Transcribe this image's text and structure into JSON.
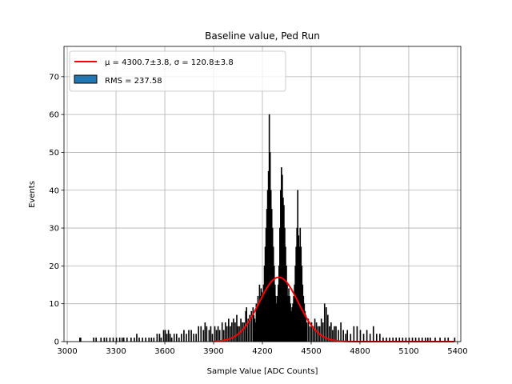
{
  "chart_data": {
    "type": "bar",
    "title": "Baseline value, Ped Run",
    "xlabel": "Sample Value [ADC Counts]",
    "ylabel": "Events",
    "xlim": [
      2980,
      5420
    ],
    "ylim": [
      0,
      78
    ],
    "xticks": [
      3000,
      3300,
      3600,
      3900,
      4200,
      4500,
      4800,
      5100,
      5400
    ],
    "yticks": [
      0,
      10,
      20,
      30,
      40,
      50,
      60,
      70
    ],
    "grid": true,
    "legend_position": "top-left",
    "legend": [
      {
        "kind": "line",
        "label": "μ = 4300.7±3.8, σ = 120.8±3.8",
        "color": "#ff0000"
      },
      {
        "kind": "patch",
        "label": "RMS = 237.58",
        "color": "#1f77b4"
      }
    ],
    "histogram": {
      "name": "RMS = 237.58",
      "bin_width": 5,
      "bins": [
        [
          3075,
          1
        ],
        [
          3080,
          1
        ],
        [
          3160,
          1
        ],
        [
          3175,
          1
        ],
        [
          3205,
          1
        ],
        [
          3225,
          1
        ],
        [
          3240,
          1
        ],
        [
          3260,
          1
        ],
        [
          3280,
          1
        ],
        [
          3300,
          1
        ],
        [
          3320,
          1
        ],
        [
          3335,
          1
        ],
        [
          3345,
          1
        ],
        [
          3365,
          1
        ],
        [
          3390,
          1
        ],
        [
          3410,
          1
        ],
        [
          3425,
          2
        ],
        [
          3440,
          1
        ],
        [
          3460,
          1
        ],
        [
          3480,
          1
        ],
        [
          3500,
          1
        ],
        [
          3515,
          1
        ],
        [
          3530,
          1
        ],
        [
          3550,
          2
        ],
        [
          3565,
          2
        ],
        [
          3575,
          1
        ],
        [
          3590,
          3
        ],
        [
          3600,
          3
        ],
        [
          3610,
          2
        ],
        [
          3620,
          3
        ],
        [
          3630,
          2
        ],
        [
          3640,
          1
        ],
        [
          3655,
          2
        ],
        [
          3670,
          2
        ],
        [
          3685,
          1
        ],
        [
          3700,
          2
        ],
        [
          3715,
          3
        ],
        [
          3730,
          2
        ],
        [
          3745,
          3
        ],
        [
          3760,
          3
        ],
        [
          3775,
          2
        ],
        [
          3790,
          2
        ],
        [
          3805,
          4
        ],
        [
          3820,
          4
        ],
        [
          3835,
          3
        ],
        [
          3845,
          5
        ],
        [
          3855,
          4
        ],
        [
          3870,
          3
        ],
        [
          3880,
          4
        ],
        [
          3890,
          2
        ],
        [
          3905,
          4
        ],
        [
          3915,
          3
        ],
        [
          3925,
          4
        ],
        [
          3935,
          3
        ],
        [
          3950,
          5
        ],
        [
          3960,
          3
        ],
        [
          3970,
          5
        ],
        [
          3980,
          4
        ],
        [
          3990,
          6
        ],
        [
          4000,
          4
        ],
        [
          4010,
          5
        ],
        [
          4020,
          6
        ],
        [
          4030,
          5
        ],
        [
          4040,
          7
        ],
        [
          4045,
          4
        ],
        [
          4055,
          4
        ],
        [
          4065,
          6
        ],
        [
          4075,
          5
        ],
        [
          4085,
          5
        ],
        [
          4095,
          8
        ],
        [
          4100,
          9
        ],
        [
          4110,
          6
        ],
        [
          4120,
          7
        ],
        [
          4130,
          8
        ],
        [
          4140,
          9
        ],
        [
          4145,
          7
        ],
        [
          4150,
          6
        ],
        [
          4155,
          5
        ],
        [
          4160,
          10
        ],
        [
          4165,
          9
        ],
        [
          4170,
          12
        ],
        [
          4175,
          10
        ],
        [
          4180,
          15
        ],
        [
          4185,
          12
        ],
        [
          4190,
          14
        ],
        [
          4195,
          13
        ],
        [
          4200,
          12
        ],
        [
          4205,
          15
        ],
        [
          4210,
          20
        ],
        [
          4215,
          25
        ],
        [
          4220,
          30
        ],
        [
          4225,
          35
        ],
        [
          4230,
          40
        ],
        [
          4235,
          45
        ],
        [
          4240,
          60
        ],
        [
          4245,
          50
        ],
        [
          4250,
          40
        ],
        [
          4255,
          35
        ],
        [
          4260,
          30
        ],
        [
          4265,
          25
        ],
        [
          4270,
          20
        ],
        [
          4275,
          15
        ],
        [
          4280,
          12
        ],
        [
          4285,
          10
        ],
        [
          4290,
          12
        ],
        [
          4295,
          15
        ],
        [
          4300,
          20
        ],
        [
          4305,
          30
        ],
        [
          4310,
          40
        ],
        [
          4315,
          46
        ],
        [
          4320,
          44
        ],
        [
          4325,
          38
        ],
        [
          4330,
          36
        ],
        [
          4335,
          30
        ],
        [
          4340,
          25
        ],
        [
          4345,
          20
        ],
        [
          4350,
          15
        ],
        [
          4355,
          12
        ],
        [
          4360,
          14
        ],
        [
          4365,
          12
        ],
        [
          4370,
          10
        ],
        [
          4375,
          8
        ],
        [
          4380,
          9
        ],
        [
          4385,
          10
        ],
        [
          4390,
          12
        ],
        [
          4395,
          15
        ],
        [
          4400,
          20
        ],
        [
          4405,
          25
        ],
        [
          4410,
          30
        ],
        [
          4415,
          40
        ],
        [
          4420,
          28
        ],
        [
          4425,
          25
        ],
        [
          4430,
          30
        ],
        [
          4435,
          25
        ],
        [
          4440,
          20
        ],
        [
          4445,
          15
        ],
        [
          4450,
          12
        ],
        [
          4455,
          10
        ],
        [
          4460,
          8
        ],
        [
          4465,
          7
        ],
        [
          4470,
          5
        ],
        [
          4480,
          6
        ],
        [
          4490,
          4
        ],
        [
          4500,
          5
        ],
        [
          4510,
          4
        ],
        [
          4520,
          6
        ],
        [
          4530,
          5
        ],
        [
          4540,
          4
        ],
        [
          4550,
          4
        ],
        [
          4560,
          6
        ],
        [
          4570,
          5
        ],
        [
          4580,
          10
        ],
        [
          4590,
          9
        ],
        [
          4600,
          7
        ],
        [
          4610,
          4
        ],
        [
          4620,
          5
        ],
        [
          4630,
          3
        ],
        [
          4640,
          4
        ],
        [
          4650,
          4
        ],
        [
          4665,
          3
        ],
        [
          4680,
          5
        ],
        [
          4695,
          3
        ],
        [
          4710,
          2
        ],
        [
          4720,
          3
        ],
        [
          4740,
          2
        ],
        [
          4760,
          4
        ],
        [
          4780,
          4
        ],
        [
          4800,
          3
        ],
        [
          4820,
          2
        ],
        [
          4840,
          3
        ],
        [
          4860,
          2
        ],
        [
          4880,
          4
        ],
        [
          4900,
          2
        ],
        [
          4920,
          2
        ],
        [
          4940,
          1
        ],
        [
          4960,
          1
        ],
        [
          4980,
          1
        ],
        [
          5000,
          1
        ],
        [
          5020,
          1
        ],
        [
          5040,
          1
        ],
        [
          5060,
          1
        ],
        [
          5080,
          1
        ],
        [
          5100,
          1
        ],
        [
          5120,
          1
        ],
        [
          5140,
          1
        ],
        [
          5160,
          1
        ],
        [
          5180,
          1
        ],
        [
          5200,
          1
        ],
        [
          5215,
          1
        ],
        [
          5230,
          1
        ],
        [
          5260,
          1
        ],
        [
          5290,
          1
        ],
        [
          5320,
          1
        ],
        [
          5340,
          1
        ],
        [
          5380,
          1
        ]
      ]
    },
    "fit": {
      "name": "μ = 4300.7±3.8, σ = 120.8±3.8",
      "mu": 4300.7,
      "sigma": 120.8,
      "amplitude": 17,
      "x_range": [
        3900,
        5380
      ]
    }
  }
}
